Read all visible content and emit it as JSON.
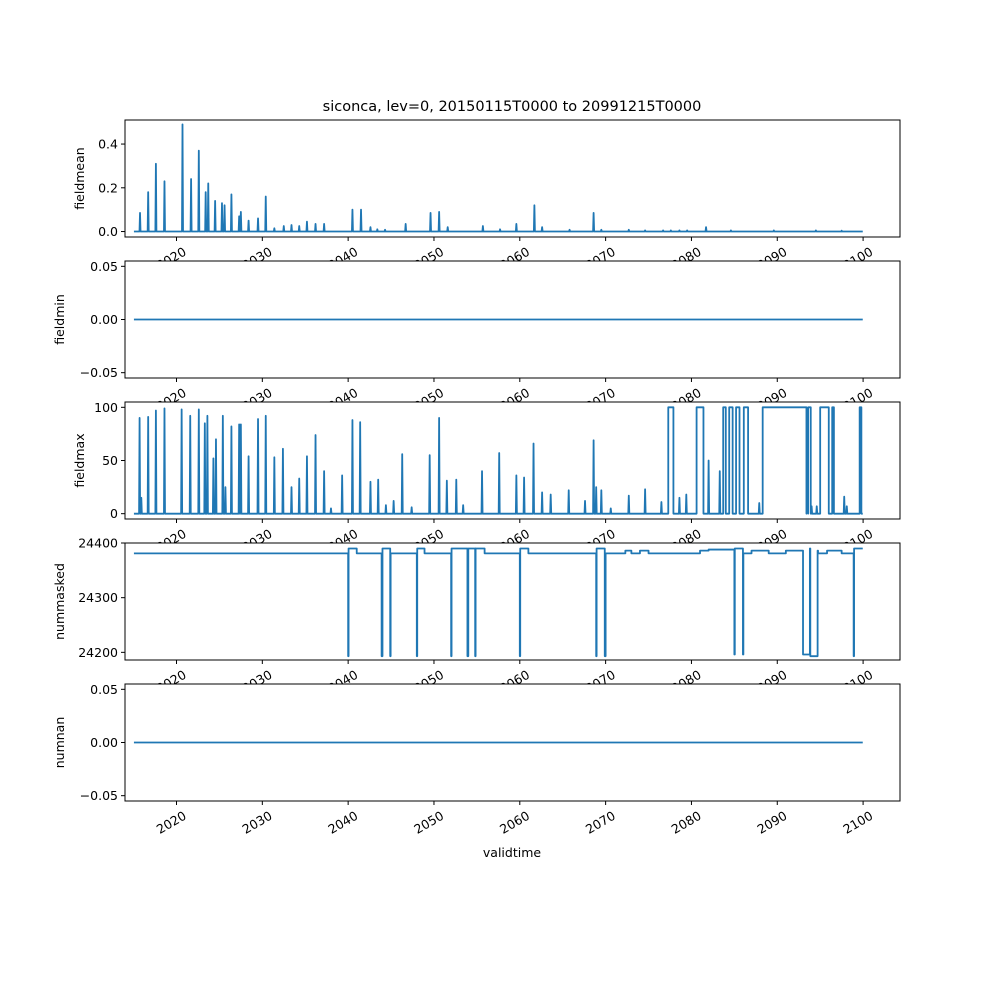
{
  "title": "siconca, lev=0, 20150115T0000 to 20991215T0000",
  "xlabel": "validtime",
  "chart_data": [
    {
      "type": "line",
      "ylabel": "fieldmean",
      "xlim": [
        2014.0,
        2104.3
      ],
      "ylim": [
        -0.025,
        0.51
      ],
      "yticks": [
        0.0,
        0.2,
        0.4
      ],
      "ytick_labels": [
        "0.0",
        "0.2",
        "0.4"
      ],
      "xticks": [
        2020,
        2030,
        2040,
        2050,
        2060,
        2070,
        2080,
        2090,
        2100
      ],
      "xtick_labels": [
        "2020",
        "2030",
        "2040",
        "2050",
        "2060",
        "2070",
        "2080",
        "2090",
        "2100"
      ],
      "baseline": 0,
      "x_start": 2015.04,
      "x_end": 2099.96,
      "series": [
        {
          "color": "#1f77b4",
          "spikes": [
            [
              2015.75,
              0.085
            ],
            [
              2016.7,
              0.18
            ],
            [
              2017.6,
              0.31
            ],
            [
              2018.6,
              0.23
            ],
            [
              2020.7,
              0.49
            ],
            [
              2021.7,
              0.24
            ],
            [
              2022.6,
              0.37
            ],
            [
              2023.4,
              0.18
            ],
            [
              2023.7,
              0.22
            ],
            [
              2024.5,
              0.14
            ],
            [
              2025.3,
              0.13
            ],
            [
              2025.6,
              0.12
            ],
            [
              2026.4,
              0.17
            ],
            [
              2027.3,
              0.07
            ],
            [
              2027.5,
              0.09
            ],
            [
              2028.4,
              0.05
            ],
            [
              2029.5,
              0.06
            ],
            [
              2030.4,
              0.16
            ],
            [
              2031.4,
              0.015
            ],
            [
              2032.5,
              0.025
            ],
            [
              2033.4,
              0.03
            ],
            [
              2034.3,
              0.025
            ],
            [
              2035.2,
              0.045
            ],
            [
              2036.2,
              0.035
            ],
            [
              2037.2,
              0.035
            ],
            [
              2040.5,
              0.1
            ],
            [
              2041.5,
              0.1
            ],
            [
              2042.6,
              0.02
            ],
            [
              2043.4,
              0.01
            ],
            [
              2044.3,
              0.008
            ],
            [
              2046.7,
              0.035
            ],
            [
              2049.6,
              0.085
            ],
            [
              2050.6,
              0.09
            ],
            [
              2051.6,
              0.02
            ],
            [
              2055.7,
              0.025
            ],
            [
              2057.7,
              0.01
            ],
            [
              2059.6,
              0.035
            ],
            [
              2061.7,
              0.12
            ],
            [
              2062.6,
              0.02
            ],
            [
              2065.8,
              0.008
            ],
            [
              2068.6,
              0.085
            ],
            [
              2069.5,
              0.008
            ],
            [
              2072.7,
              0.008
            ],
            [
              2074.6,
              0.005
            ],
            [
              2076.7,
              0.005
            ],
            [
              2077.6,
              0.005
            ],
            [
              2078.6,
              0.005
            ],
            [
              2079.5,
              0.005
            ],
            [
              2081.7,
              0.02
            ],
            [
              2084.6,
              0.005
            ],
            [
              2089.6,
              0.005
            ],
            [
              2094.5,
              0.005
            ],
            [
              2097.5,
              0.004
            ]
          ]
        }
      ]
    },
    {
      "type": "line",
      "ylabel": "fieldmin",
      "xlim": [
        2014.0,
        2104.3
      ],
      "ylim": [
        -0.055,
        0.055
      ],
      "yticks": [
        -0.05,
        0.0,
        0.05
      ],
      "ytick_labels": [
        "−0.05",
        "0.00",
        "0.05"
      ],
      "xticks": [
        2020,
        2030,
        2040,
        2050,
        2060,
        2070,
        2080,
        2090,
        2100
      ],
      "xtick_labels": [
        "2020",
        "2030",
        "2040",
        "2050",
        "2060",
        "2070",
        "2080",
        "2090",
        "2100"
      ],
      "series": [
        {
          "color": "#1f77b4",
          "x": [
            2015.04,
            2099.96
          ],
          "y": [
            0,
            0
          ]
        }
      ]
    },
    {
      "type": "line",
      "ylabel": "fieldmax",
      "xlim": [
        2014.0,
        2104.3
      ],
      "ylim": [
        -5,
        105
      ],
      "yticks": [
        0,
        50,
        100
      ],
      "ytick_labels": [
        "0",
        "50",
        "100"
      ],
      "xticks": [
        2020,
        2030,
        2040,
        2050,
        2060,
        2070,
        2080,
        2090,
        2100
      ],
      "xtick_labels": [
        "2020",
        "2030",
        "2040",
        "2050",
        "2060",
        "2070",
        "2080",
        "2090",
        "2100"
      ],
      "baseline": 0,
      "x_start": 2015.04,
      "x_end": 2099.96,
      "series": [
        {
          "color": "#1f77b4",
          "spikes": [
            [
              2015.7,
              90
            ],
            [
              2015.9,
              15
            ],
            [
              2016.7,
              91
            ],
            [
              2017.6,
              97
            ],
            [
              2018.6,
              99
            ],
            [
              2020.6,
              98
            ],
            [
              2021.6,
              92
            ],
            [
              2022.6,
              98
            ],
            [
              2023.3,
              85
            ],
            [
              2023.6,
              92
            ],
            [
              2024.3,
              52
            ],
            [
              2024.6,
              70
            ],
            [
              2025.4,
              92
            ],
            [
              2025.7,
              25
            ],
            [
              2026.4,
              82
            ],
            [
              2027.3,
              84
            ],
            [
              2027.5,
              84
            ],
            [
              2028.4,
              54
            ],
            [
              2029.5,
              89
            ],
            [
              2030.4,
              92
            ],
            [
              2031.4,
              53
            ],
            [
              2032.4,
              61
            ],
            [
              2033.4,
              25
            ],
            [
              2034.3,
              33
            ],
            [
              2035.2,
              54
            ],
            [
              2036.2,
              74
            ],
            [
              2037.2,
              40
            ],
            [
              2038.0,
              5
            ],
            [
              2039.3,
              36
            ],
            [
              2040.5,
              88
            ],
            [
              2041.4,
              86
            ],
            [
              2042.6,
              30
            ],
            [
              2043.5,
              32
            ],
            [
              2044.4,
              8
            ],
            [
              2045.3,
              12
            ],
            [
              2046.3,
              56
            ],
            [
              2047.4,
              6
            ],
            [
              2049.5,
              55
            ],
            [
              2050.6,
              90
            ],
            [
              2051.5,
              31
            ],
            [
              2052.6,
              32
            ],
            [
              2053.4,
              8
            ],
            [
              2055.6,
              40
            ],
            [
              2057.6,
              57
            ],
            [
              2059.6,
              36
            ],
            [
              2060.5,
              34
            ],
            [
              2061.6,
              66
            ],
            [
              2062.6,
              20
            ],
            [
              2063.6,
              18
            ],
            [
              2065.7,
              22
            ],
            [
              2067.6,
              12
            ],
            [
              2068.6,
              69
            ],
            [
              2068.9,
              25
            ],
            [
              2069.5,
              22
            ],
            [
              2070.6,
              5
            ],
            [
              2072.7,
              17
            ],
            [
              2074.6,
              23
            ],
            [
              2076.5,
              11
            ],
            [
              2078.6,
              15
            ],
            [
              2079.4,
              18
            ],
            [
              2082.0,
              50
            ],
            [
              2083.3,
              40
            ],
            [
              2087.9,
              10
            ],
            [
              2094.0,
              7
            ],
            [
              2094.6,
              7
            ],
            [
              2097.8,
              16
            ],
            [
              2098.1,
              7
            ]
          ],
          "plateaus": [
            [
              2077.3,
              2077.9,
              100
            ],
            [
              2080.6,
              2081.4,
              100
            ],
            [
              2083.7,
              2084.0,
              100
            ],
            [
              2084.4,
              2084.8,
              100
            ],
            [
              2085.2,
              2085.6,
              100
            ],
            [
              2086.1,
              2086.6,
              100
            ],
            [
              2088.3,
              2093.4,
              100
            ],
            [
              2093.4,
              2093.6,
              43
            ],
            [
              2093.6,
              2093.9,
              100
            ],
            [
              2095.0,
              2096.0,
              100
            ],
            [
              2096.4,
              2096.6,
              100
            ],
            [
              2099.6,
              2099.8,
              100
            ]
          ]
        }
      ]
    },
    {
      "type": "line",
      "ylabel": "nummasked",
      "xlim": [
        2014.0,
        2104.3
      ],
      "ylim": [
        24186,
        24400
      ],
      "yticks": [
        24200,
        24300,
        24400
      ],
      "ytick_labels": [
        "24200",
        "24300",
        "24400"
      ],
      "xticks": [
        2020,
        2030,
        2040,
        2050,
        2060,
        2070,
        2080,
        2090,
        2100
      ],
      "xtick_labels": [
        "2020",
        "2030",
        "2040",
        "2050",
        "2060",
        "2070",
        "2080",
        "2090",
        "2100"
      ],
      "series": [
        {
          "color": "#1f77b4",
          "x": [
            2015.04,
            2040.0,
            2040.0,
            2040.05,
            2040.05,
            2041.0,
            2041.0,
            2043.9,
            2043.9,
            2044.0,
            2044.0,
            2044.9,
            2044.9,
            2044.95,
            2044.95,
            2048.0,
            2048.0,
            2048.05,
            2048.05,
            2048.9,
            2048.9,
            2052.0,
            2052.0,
            2052.05,
            2052.05,
            2053.9,
            2053.9,
            2054.0,
            2054.0,
            2054.8,
            2054.8,
            2054.85,
            2054.85,
            2055.9,
            2055.9,
            2060.0,
            2060.0,
            2060.05,
            2060.05,
            2061.0,
            2061.0,
            2068.9,
            2068.9,
            2068.95,
            2068.95,
            2069.9,
            2069.9,
            2070.0,
            2070.0,
            2072.3,
            2072.3,
            2073.0,
            2073.0,
            2074.0,
            2074.0,
            2075.0,
            2075.0,
            2081.0,
            2081.0,
            2082.0,
            2082.0,
            2085.0,
            2085.0,
            2085.05,
            2085.05,
            2086.0,
            2086.0,
            2086.05,
            2086.05,
            2087.0,
            2087.0,
            2089.0,
            2089.0,
            2091.0,
            2091.0,
            2093.0,
            2093.0,
            2093.8,
            2093.8,
            2093.85,
            2093.85,
            2094.7,
            2094.7,
            2094.75,
            2094.75,
            2095.8,
            2095.8,
            2097.5,
            2097.5,
            2098.9,
            2098.9,
            2098.95,
            2098.95,
            2099.96
          ],
          "y": [
            24381,
            24381,
            24193,
            24193,
            24390,
            24390,
            24381,
            24381,
            24193,
            24193,
            24390,
            24390,
            24193,
            24193,
            24381,
            24381,
            24193,
            24193,
            24390,
            24390,
            24381,
            24381,
            24193,
            24193,
            24390,
            24390,
            24193,
            24193,
            24390,
            24390,
            24193,
            24193,
            24390,
            24390,
            24381,
            24381,
            24193,
            24193,
            24390,
            24390,
            24381,
            24381,
            24193,
            24193,
            24390,
            24390,
            24193,
            24193,
            24381,
            24381,
            24386,
            24386,
            24381,
            24381,
            24386,
            24386,
            24381,
            24381,
            24386,
            24386,
            24388,
            24388,
            24196,
            24196,
            24390,
            24390,
            24196,
            24196,
            24381,
            24381,
            24386,
            24386,
            24381,
            24381,
            24386,
            24386,
            24196,
            24196,
            24390,
            24390,
            24193,
            24193,
            24386,
            24386,
            24381,
            24381,
            24386,
            24386,
            24381,
            24381,
            24193,
            24193,
            24390,
            24390
          ]
        }
      ]
    },
    {
      "type": "line",
      "ylabel": "numnan",
      "xlim": [
        2014.0,
        2104.3
      ],
      "ylim": [
        -0.055,
        0.055
      ],
      "yticks": [
        -0.05,
        0.0,
        0.05
      ],
      "ytick_labels": [
        "−0.05",
        "0.00",
        "0.05"
      ],
      "xticks": [
        2020,
        2030,
        2040,
        2050,
        2060,
        2070,
        2080,
        2090,
        2100
      ],
      "xtick_labels": [
        "2020",
        "2030",
        "2040",
        "2050",
        "2060",
        "2070",
        "2080",
        "2090",
        "2100"
      ],
      "series": [
        {
          "color": "#1f77b4",
          "x": [
            2015.04,
            2099.96
          ],
          "y": [
            0,
            0
          ]
        }
      ]
    }
  ]
}
